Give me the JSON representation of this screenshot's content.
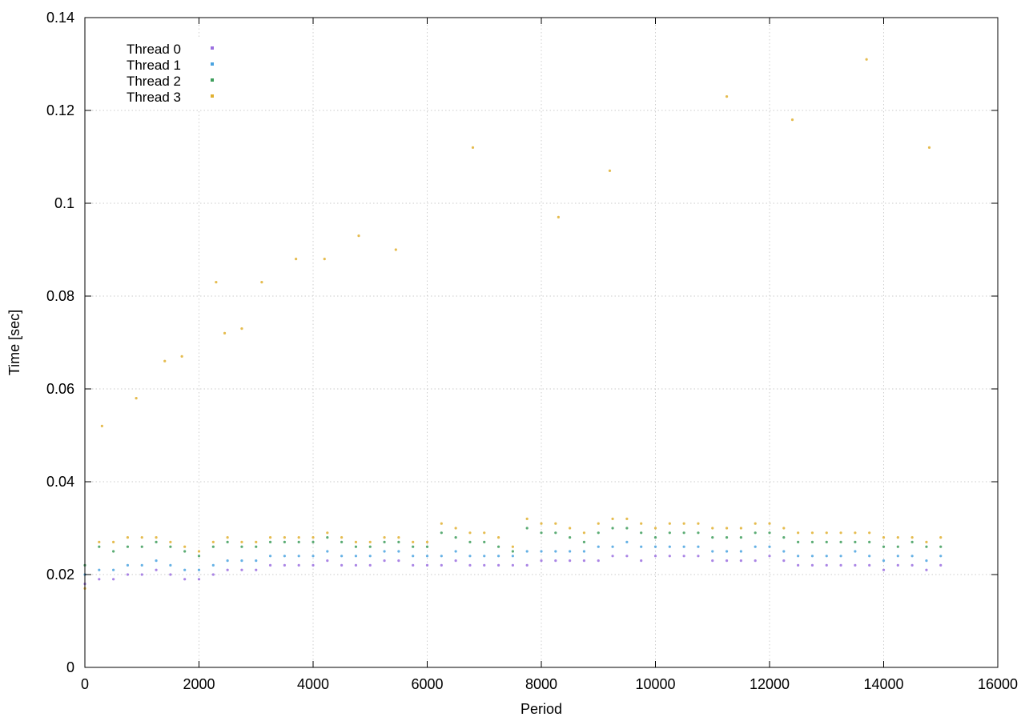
{
  "chart_data": {
    "type": "scatter",
    "title": "",
    "xlabel": "Period",
    "ylabel": "Time [sec]",
    "xlim": [
      0,
      16000
    ],
    "ylim": [
      0,
      0.14
    ],
    "x_ticks": [
      "0",
      "2000",
      "4000",
      "6000",
      "8000",
      "10000",
      "12000",
      "14000",
      "16000"
    ],
    "y_ticks": [
      "0",
      "0.02",
      "0.04",
      "0.06",
      "0.08",
      "0.1",
      "0.12",
      "0.14"
    ],
    "grid": true,
    "legend_position": "top-left",
    "series": [
      {
        "name": "Thread 0",
        "color": "#9b6fe0",
        "points": [
          [
            0,
            0.018
          ],
          [
            250,
            0.019
          ],
          [
            500,
            0.019
          ],
          [
            750,
            0.02
          ],
          [
            1000,
            0.02
          ],
          [
            1250,
            0.021
          ],
          [
            1500,
            0.02
          ],
          [
            1750,
            0.019
          ],
          [
            2000,
            0.019
          ],
          [
            2250,
            0.02
          ],
          [
            2500,
            0.021
          ],
          [
            2750,
            0.021
          ],
          [
            3000,
            0.021
          ],
          [
            3250,
            0.022
          ],
          [
            3500,
            0.022
          ],
          [
            3750,
            0.022
          ],
          [
            4000,
            0.022
          ],
          [
            4250,
            0.023
          ],
          [
            4500,
            0.022
          ],
          [
            4750,
            0.022
          ],
          [
            5000,
            0.022
          ],
          [
            5250,
            0.023
          ],
          [
            5500,
            0.023
          ],
          [
            5750,
            0.022
          ],
          [
            6000,
            0.022
          ],
          [
            6250,
            0.022
          ],
          [
            6500,
            0.023
          ],
          [
            6750,
            0.022
          ],
          [
            7000,
            0.022
          ],
          [
            7250,
            0.022
          ],
          [
            7500,
            0.022
          ],
          [
            7750,
            0.022
          ],
          [
            8000,
            0.023
          ],
          [
            8250,
            0.023
          ],
          [
            8500,
            0.023
          ],
          [
            8750,
            0.023
          ],
          [
            9000,
            0.023
          ],
          [
            9250,
            0.024
          ],
          [
            9500,
            0.024
          ],
          [
            9750,
            0.023
          ],
          [
            10000,
            0.024
          ],
          [
            10250,
            0.024
          ],
          [
            10500,
            0.024
          ],
          [
            10750,
            0.024
          ],
          [
            11000,
            0.023
          ],
          [
            11250,
            0.023
          ],
          [
            11500,
            0.023
          ],
          [
            11750,
            0.023
          ],
          [
            12000,
            0.024
          ],
          [
            12250,
            0.023
          ],
          [
            12500,
            0.022
          ],
          [
            12750,
            0.022
          ],
          [
            13000,
            0.022
          ],
          [
            13250,
            0.022
          ],
          [
            13500,
            0.022
          ],
          [
            13750,
            0.022
          ],
          [
            14000,
            0.021
          ],
          [
            14250,
            0.022
          ],
          [
            14500,
            0.022
          ],
          [
            14750,
            0.021
          ],
          [
            15000,
            0.022
          ]
        ]
      },
      {
        "name": "Thread 1",
        "color": "#4aa3e0",
        "points": [
          [
            0,
            0.02
          ],
          [
            250,
            0.021
          ],
          [
            500,
            0.021
          ],
          [
            750,
            0.022
          ],
          [
            1000,
            0.022
          ],
          [
            1250,
            0.023
          ],
          [
            1500,
            0.022
          ],
          [
            1750,
            0.021
          ],
          [
            2000,
            0.021
          ],
          [
            2250,
            0.022
          ],
          [
            2500,
            0.023
          ],
          [
            2750,
            0.023
          ],
          [
            3000,
            0.023
          ],
          [
            3250,
            0.024
          ],
          [
            3500,
            0.024
          ],
          [
            3750,
            0.024
          ],
          [
            4000,
            0.024
          ],
          [
            4250,
            0.025
          ],
          [
            4500,
            0.024
          ],
          [
            4750,
            0.024
          ],
          [
            5000,
            0.024
          ],
          [
            5250,
            0.025
          ],
          [
            5500,
            0.025
          ],
          [
            5750,
            0.024
          ],
          [
            6000,
            0.024
          ],
          [
            6250,
            0.024
          ],
          [
            6500,
            0.025
          ],
          [
            6750,
            0.024
          ],
          [
            7000,
            0.024
          ],
          [
            7250,
            0.024
          ],
          [
            7500,
            0.024
          ],
          [
            7750,
            0.025
          ],
          [
            8000,
            0.025
          ],
          [
            8250,
            0.025
          ],
          [
            8500,
            0.025
          ],
          [
            8750,
            0.025
          ],
          [
            9000,
            0.026
          ],
          [
            9250,
            0.026
          ],
          [
            9500,
            0.027
          ],
          [
            9750,
            0.026
          ],
          [
            10000,
            0.026
          ],
          [
            10250,
            0.026
          ],
          [
            10500,
            0.026
          ],
          [
            10750,
            0.026
          ],
          [
            11000,
            0.025
          ],
          [
            11250,
            0.025
          ],
          [
            11500,
            0.025
          ],
          [
            11750,
            0.026
          ],
          [
            12000,
            0.026
          ],
          [
            12250,
            0.025
          ],
          [
            12500,
            0.024
          ],
          [
            12750,
            0.024
          ],
          [
            13000,
            0.024
          ],
          [
            13250,
            0.024
          ],
          [
            13500,
            0.025
          ],
          [
            13750,
            0.024
          ],
          [
            14000,
            0.023
          ],
          [
            14250,
            0.024
          ],
          [
            14500,
            0.024
          ],
          [
            14750,
            0.023
          ],
          [
            15000,
            0.024
          ]
        ]
      },
      {
        "name": "Thread 2",
        "color": "#3e9e5c",
        "points": [
          [
            0,
            0.022
          ],
          [
            250,
            0.026
          ],
          [
            500,
            0.025
          ],
          [
            750,
            0.026
          ],
          [
            1000,
            0.026
          ],
          [
            1250,
            0.027
          ],
          [
            1500,
            0.026
          ],
          [
            1750,
            0.025
          ],
          [
            2000,
            0.024
          ],
          [
            2250,
            0.026
          ],
          [
            2500,
            0.027
          ],
          [
            2750,
            0.026
          ],
          [
            3000,
            0.026
          ],
          [
            3250,
            0.027
          ],
          [
            3500,
            0.027
          ],
          [
            3750,
            0.027
          ],
          [
            4000,
            0.027
          ],
          [
            4250,
            0.028
          ],
          [
            4500,
            0.027
          ],
          [
            4750,
            0.026
          ],
          [
            5000,
            0.026
          ],
          [
            5250,
            0.027
          ],
          [
            5500,
            0.027
          ],
          [
            5750,
            0.026
          ],
          [
            6000,
            0.026
          ],
          [
            6250,
            0.029
          ],
          [
            6500,
            0.028
          ],
          [
            6750,
            0.027
          ],
          [
            7000,
            0.027
          ],
          [
            7250,
            0.026
          ],
          [
            7500,
            0.025
          ],
          [
            7750,
            0.03
          ],
          [
            8000,
            0.029
          ],
          [
            8250,
            0.029
          ],
          [
            8500,
            0.028
          ],
          [
            8750,
            0.027
          ],
          [
            9000,
            0.029
          ],
          [
            9250,
            0.03
          ],
          [
            9500,
            0.03
          ],
          [
            9750,
            0.029
          ],
          [
            10000,
            0.028
          ],
          [
            10250,
            0.029
          ],
          [
            10500,
            0.029
          ],
          [
            10750,
            0.029
          ],
          [
            11000,
            0.028
          ],
          [
            11250,
            0.028
          ],
          [
            11500,
            0.028
          ],
          [
            11750,
            0.029
          ],
          [
            12000,
            0.029
          ],
          [
            12250,
            0.028
          ],
          [
            12500,
            0.027
          ],
          [
            12750,
            0.027
          ],
          [
            13000,
            0.027
          ],
          [
            13250,
            0.027
          ],
          [
            13500,
            0.027
          ],
          [
            13750,
            0.027
          ],
          [
            14000,
            0.026
          ],
          [
            14250,
            0.026
          ],
          [
            14500,
            0.027
          ],
          [
            14750,
            0.026
          ],
          [
            15000,
            0.026
          ]
        ]
      },
      {
        "name": "Thread 3",
        "color": "#e0b030",
        "points": [
          [
            0,
            0.017
          ],
          [
            250,
            0.027
          ],
          [
            500,
            0.027
          ],
          [
            750,
            0.028
          ],
          [
            1000,
            0.028
          ],
          [
            1250,
            0.028
          ],
          [
            1500,
            0.027
          ],
          [
            1750,
            0.026
          ],
          [
            2000,
            0.025
          ],
          [
            2250,
            0.027
          ],
          [
            2500,
            0.028
          ],
          [
            2750,
            0.027
          ],
          [
            3000,
            0.027
          ],
          [
            3250,
            0.028
          ],
          [
            3500,
            0.028
          ],
          [
            3750,
            0.028
          ],
          [
            4000,
            0.028
          ],
          [
            4250,
            0.029
          ],
          [
            4500,
            0.028
          ],
          [
            4750,
            0.027
          ],
          [
            5000,
            0.027
          ],
          [
            5250,
            0.028
          ],
          [
            5500,
            0.028
          ],
          [
            5750,
            0.027
          ],
          [
            6000,
            0.027
          ],
          [
            6250,
            0.031
          ],
          [
            6500,
            0.03
          ],
          [
            6750,
            0.029
          ],
          [
            7000,
            0.029
          ],
          [
            7250,
            0.028
          ],
          [
            7500,
            0.026
          ],
          [
            7750,
            0.032
          ],
          [
            8000,
            0.031
          ],
          [
            8250,
            0.031
          ],
          [
            8500,
            0.03
          ],
          [
            8750,
            0.029
          ],
          [
            9000,
            0.031
          ],
          [
            9250,
            0.032
          ],
          [
            9500,
            0.032
          ],
          [
            9750,
            0.031
          ],
          [
            10000,
            0.03
          ],
          [
            10250,
            0.031
          ],
          [
            10500,
            0.031
          ],
          [
            10750,
            0.031
          ],
          [
            11000,
            0.03
          ],
          [
            11250,
            0.03
          ],
          [
            11500,
            0.03
          ],
          [
            11750,
            0.031
          ],
          [
            12000,
            0.031
          ],
          [
            12250,
            0.03
          ],
          [
            12500,
            0.029
          ],
          [
            12750,
            0.029
          ],
          [
            13000,
            0.029
          ],
          [
            13250,
            0.029
          ],
          [
            13500,
            0.029
          ],
          [
            13750,
            0.029
          ],
          [
            14000,
            0.028
          ],
          [
            14250,
            0.028
          ],
          [
            14500,
            0.028
          ],
          [
            14750,
            0.027
          ],
          [
            15000,
            0.028
          ],
          [
            300,
            0.052
          ],
          [
            900,
            0.058
          ],
          [
            1400,
            0.066
          ],
          [
            1700,
            0.067
          ],
          [
            2300,
            0.083
          ],
          [
            2450,
            0.072
          ],
          [
            2750,
            0.073
          ],
          [
            3100,
            0.083
          ],
          [
            3700,
            0.088
          ],
          [
            4200,
            0.088
          ],
          [
            4800,
            0.093
          ],
          [
            5450,
            0.09
          ],
          [
            6800,
            0.112
          ],
          [
            8300,
            0.097
          ],
          [
            9200,
            0.107
          ],
          [
            11250,
            0.123
          ],
          [
            12400,
            0.118
          ],
          [
            13700,
            0.131
          ],
          [
            14800,
            0.112
          ]
        ]
      }
    ]
  }
}
